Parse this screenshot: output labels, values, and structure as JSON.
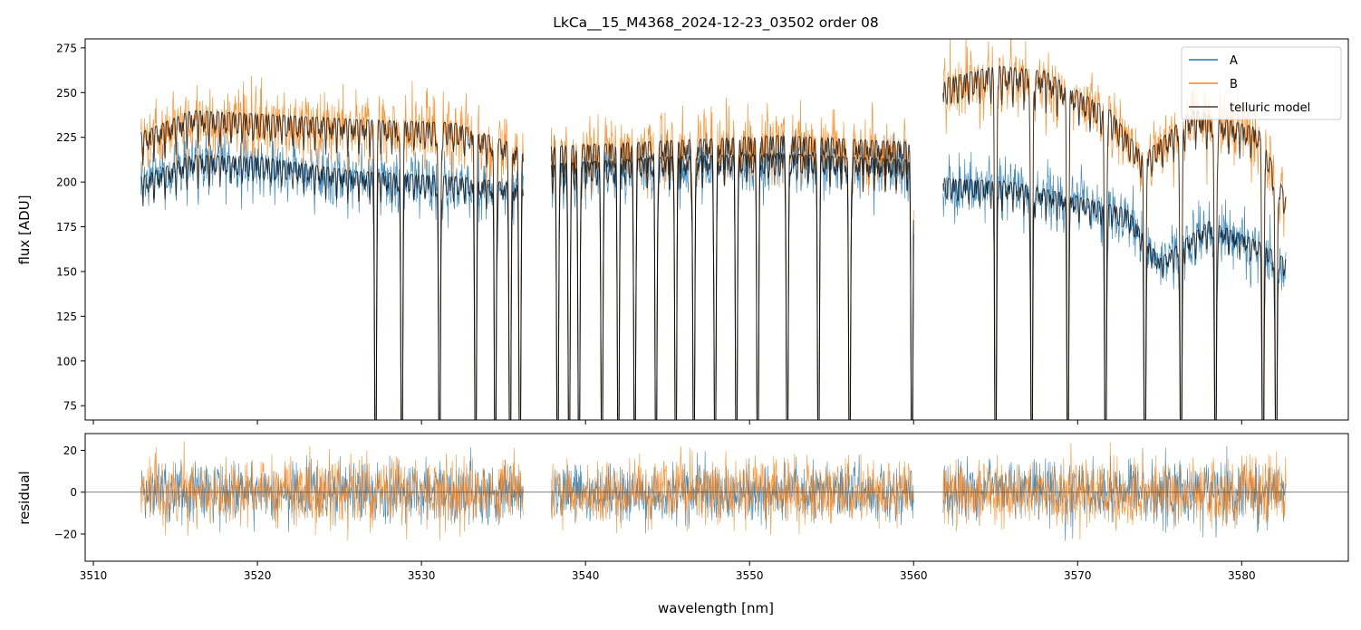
{
  "chart_data": {
    "type": "line",
    "title": "LkCa__15_M4368_2024-12-23_03502  order 08",
    "xlabel": "wavelength [nm]",
    "xlim": [
      3509.5,
      3586.5
    ],
    "x_ticks": [
      3510,
      3520,
      3530,
      3540,
      3550,
      3560,
      3570,
      3580
    ],
    "x_tick_labels": [
      "3510",
      "3520",
      "3530",
      "3540",
      "3550",
      "3560",
      "3570",
      "3580"
    ],
    "legend_position": "top-right",
    "colors": {
      "A": "#1f77b4",
      "B": "#ff7f0e",
      "telluric": "#000000",
      "zero_line": "#555555"
    },
    "segments": [
      [
        3512.9,
        3536.2
      ],
      [
        3537.9,
        3560.0
      ],
      [
        3561.8,
        3582.7
      ]
    ],
    "absorption_lines": [
      3527.2,
      3528.8,
      3531.1,
      3533.3,
      3534.5,
      3535.4,
      3536.0,
      3538.3,
      3539.0,
      3539.6,
      3541.0,
      3542.0,
      3543.0,
      3544.3,
      3545.5,
      3546.6,
      3547.9,
      3549.2,
      3550.5,
      3552.3,
      3554.2,
      3556.1,
      3559.9,
      3565.0,
      3567.2,
      3569.4,
      3571.7,
      3574.1,
      3576.3,
      3578.4,
      3581.3,
      3582.1
    ],
    "panels": [
      {
        "id": "flux",
        "ylabel": "flux [ADU]",
        "ylim": [
          67,
          280
        ],
        "y_ticks": [
          75,
          100,
          125,
          150,
          175,
          200,
          225,
          250,
          275
        ],
        "y_tick_labels": [
          "75",
          "100",
          "125",
          "150",
          "175",
          "200",
          "225",
          "250",
          "275"
        ],
        "series": [
          {
            "name": "A",
            "continuum": [
              [
                3513,
                203
              ],
              [
                3516,
                215
              ],
              [
                3520,
                214
              ],
              [
                3526,
                206
              ],
              [
                3532,
                203
              ],
              [
                3536,
                199
              ],
              [
                3538,
                210
              ],
              [
                3545,
                214
              ],
              [
                3552,
                216
              ],
              [
                3560,
                212
              ],
              [
                3562,
                202
              ],
              [
                3566,
                200
              ],
              [
                3570,
                192
              ],
              [
                3573,
                185
              ],
              [
                3575,
                157
              ],
              [
                3578,
                178
              ],
              [
                3581,
                167
              ],
              [
                3583,
                155
              ]
            ]
          },
          {
            "name": "B",
            "continuum": [
              [
                3513,
                228
              ],
              [
                3516,
                240
              ],
              [
                3520,
                238
              ],
              [
                3526,
                235
              ],
              [
                3532,
                233
              ],
              [
                3536,
                220
              ],
              [
                3538,
                220
              ],
              [
                3545,
                223
              ],
              [
                3552,
                226
              ],
              [
                3560,
                222
              ],
              [
                3562,
                258
              ],
              [
                3565,
                265
              ],
              [
                3568,
                262
              ],
              [
                3572,
                240
              ],
              [
                3574,
                215
              ],
              [
                3577,
                240
              ],
              [
                3581,
                230
              ],
              [
                3583,
                185
              ]
            ]
          },
          {
            "name": "telluric model"
          }
        ]
      },
      {
        "id": "residual",
        "ylabel": "residual",
        "ylim": [
          -33,
          28
        ],
        "y_ticks": [
          -20,
          0,
          20
        ],
        "y_tick_labels": [
          "−20",
          "0",
          "20"
        ]
      }
    ]
  }
}
